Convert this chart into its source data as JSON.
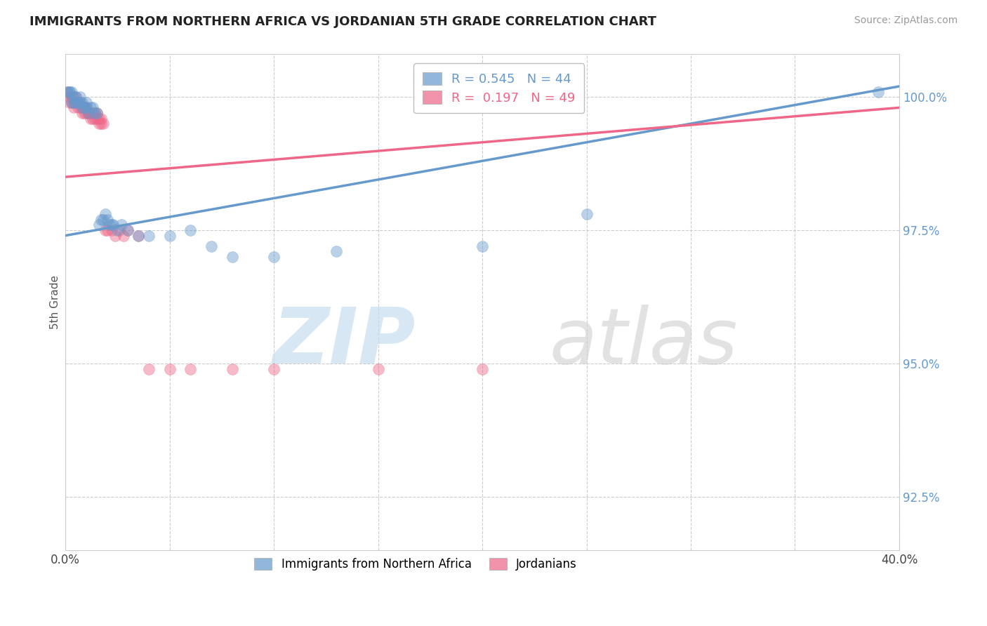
{
  "title": "IMMIGRANTS FROM NORTHERN AFRICA VS JORDANIAN 5TH GRADE CORRELATION CHART",
  "source": "Source: ZipAtlas.com",
  "ylabel": "5th Grade",
  "xlim": [
    0.0,
    0.4
  ],
  "ylim": [
    0.915,
    1.008
  ],
  "grid_color": "#cccccc",
  "blue_color": "#6699cc",
  "pink_color": "#ee6688",
  "blue_R": 0.545,
  "blue_N": 44,
  "pink_R": 0.197,
  "pink_N": 49,
  "legend_label_blue": "Immigrants from Northern Africa",
  "legend_label_pink": "Jordanians",
  "blue_line": [
    [
      0.0,
      0.974
    ],
    [
      0.4,
      1.002
    ]
  ],
  "pink_line": [
    [
      0.0,
      0.985
    ],
    [
      0.4,
      0.998
    ]
  ],
  "blue_points": [
    [
      0.001,
      1.001
    ],
    [
      0.002,
      1.001
    ],
    [
      0.002,
      1.001
    ],
    [
      0.003,
      1.001
    ],
    [
      0.003,
      0.999
    ],
    [
      0.004,
      1.0
    ],
    [
      0.004,
      0.999
    ],
    [
      0.005,
      1.0
    ],
    [
      0.005,
      0.999
    ],
    [
      0.006,
      0.999
    ],
    [
      0.007,
      1.0
    ],
    [
      0.007,
      0.999
    ],
    [
      0.008,
      0.998
    ],
    [
      0.008,
      0.999
    ],
    [
      0.009,
      0.998
    ],
    [
      0.01,
      0.999
    ],
    [
      0.01,
      0.998
    ],
    [
      0.011,
      0.997
    ],
    [
      0.012,
      0.998
    ],
    [
      0.013,
      0.998
    ],
    [
      0.014,
      0.997
    ],
    [
      0.015,
      0.997
    ],
    [
      0.016,
      0.976
    ],
    [
      0.017,
      0.977
    ],
    [
      0.018,
      0.977
    ],
    [
      0.019,
      0.978
    ],
    [
      0.02,
      0.977
    ],
    [
      0.021,
      0.976
    ],
    [
      0.022,
      0.976
    ],
    [
      0.023,
      0.976
    ],
    [
      0.025,
      0.975
    ],
    [
      0.027,
      0.976
    ],
    [
      0.03,
      0.975
    ],
    [
      0.035,
      0.974
    ],
    [
      0.04,
      0.974
    ],
    [
      0.05,
      0.974
    ],
    [
      0.06,
      0.975
    ],
    [
      0.07,
      0.972
    ],
    [
      0.08,
      0.97
    ],
    [
      0.1,
      0.97
    ],
    [
      0.13,
      0.971
    ],
    [
      0.2,
      0.972
    ],
    [
      0.25,
      0.978
    ],
    [
      0.39,
      1.001
    ]
  ],
  "pink_points": [
    [
      0.001,
      1.001
    ],
    [
      0.002,
      1.0
    ],
    [
      0.002,
      0.999
    ],
    [
      0.003,
      1.0
    ],
    [
      0.003,
      0.999
    ],
    [
      0.004,
      0.999
    ],
    [
      0.004,
      0.998
    ],
    [
      0.005,
      1.0
    ],
    [
      0.005,
      0.999
    ],
    [
      0.006,
      0.999
    ],
    [
      0.006,
      0.998
    ],
    [
      0.007,
      0.999
    ],
    [
      0.007,
      0.998
    ],
    [
      0.008,
      0.998
    ],
    [
      0.008,
      0.997
    ],
    [
      0.009,
      0.998
    ],
    [
      0.009,
      0.997
    ],
    [
      0.01,
      0.998
    ],
    [
      0.01,
      0.997
    ],
    [
      0.011,
      0.997
    ],
    [
      0.011,
      0.997
    ],
    [
      0.012,
      0.997
    ],
    [
      0.012,
      0.996
    ],
    [
      0.013,
      0.997
    ],
    [
      0.013,
      0.996
    ],
    [
      0.014,
      0.997
    ],
    [
      0.014,
      0.996
    ],
    [
      0.015,
      0.997
    ],
    [
      0.015,
      0.996
    ],
    [
      0.016,
      0.996
    ],
    [
      0.016,
      0.995
    ],
    [
      0.017,
      0.996
    ],
    [
      0.017,
      0.995
    ],
    [
      0.018,
      0.995
    ],
    [
      0.019,
      0.975
    ],
    [
      0.02,
      0.975
    ],
    [
      0.022,
      0.975
    ],
    [
      0.024,
      0.974
    ],
    [
      0.026,
      0.975
    ],
    [
      0.028,
      0.974
    ],
    [
      0.03,
      0.975
    ],
    [
      0.035,
      0.974
    ],
    [
      0.04,
      0.949
    ],
    [
      0.05,
      0.949
    ],
    [
      0.06,
      0.949
    ],
    [
      0.08,
      0.949
    ],
    [
      0.1,
      0.949
    ],
    [
      0.15,
      0.949
    ],
    [
      0.2,
      0.949
    ]
  ]
}
